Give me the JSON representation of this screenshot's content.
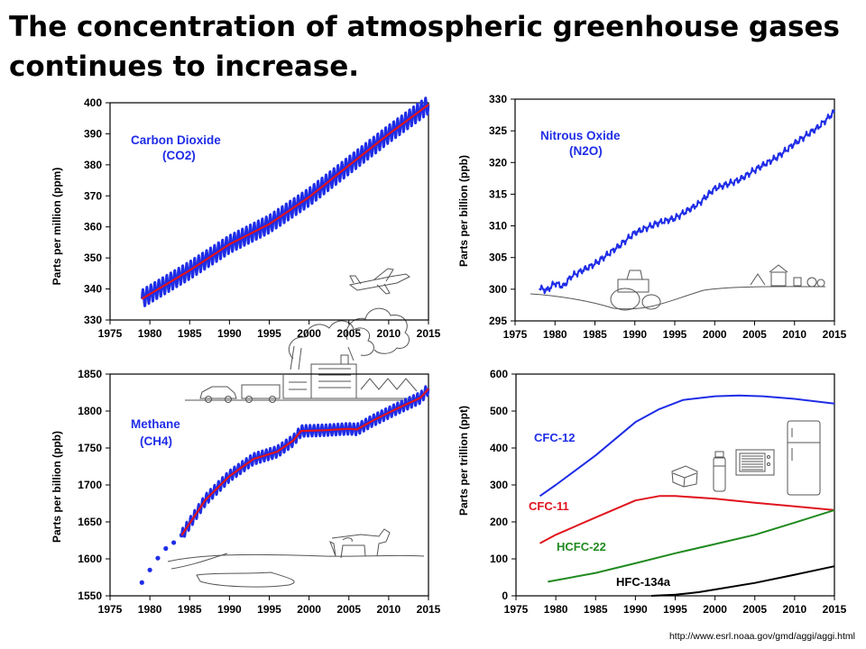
{
  "slide": {
    "title": "The concentration of atmospheric greenhouse gases continues to increase.",
    "source_url": "http://www.esrl.noaa.gov/gmd/aggi/aggi.html"
  },
  "colors": {
    "measured": "#1f2de6",
    "trend": "#e0141e",
    "green": "#1f8a1f",
    "black": "#000000"
  },
  "chart_data": [
    {
      "type": "line",
      "panel": "co2",
      "series_label_lines": [
        "Carbon Dioxide",
        "(CO2)"
      ],
      "ylabel": "Parts per million (ppm)",
      "xlim": [
        1975,
        2015
      ],
      "ylim": [
        330,
        400
      ],
      "x_ticks": [
        1975,
        1980,
        1985,
        1990,
        1995,
        2000,
        2005,
        2010,
        2015
      ],
      "y_ticks": [
        330,
        340,
        350,
        360,
        370,
        380,
        390,
        400
      ],
      "measured_seasonal_amplitude": 3,
      "series": [
        {
          "role": "measured",
          "x": [
            1979,
            1985,
            1990,
            1995,
            2000,
            2005,
            2010,
            2015
          ],
          "values": [
            336.8,
            346.0,
            354.4,
            360.9,
            369.6,
            379.8,
            389.9,
            399.4
          ]
        },
        {
          "role": "trend",
          "x": [
            1979,
            1985,
            1990,
            1995,
            2000,
            2005,
            2010,
            2015
          ],
          "values": [
            336.8,
            346.0,
            354.4,
            360.9,
            369.6,
            379.8,
            389.9,
            399.4
          ]
        }
      ],
      "illustration": [
        "airplane-icon",
        "cars-icon",
        "factory-icon",
        "smoke-icon"
      ]
    },
    {
      "type": "line",
      "panel": "n2o",
      "series_label_lines": [
        "Nitrous Oxide",
        "(N2O)"
      ],
      "ylabel": "Parts per billion (ppb)",
      "xlim": [
        1975,
        2015
      ],
      "ylim": [
        295,
        330
      ],
      "x_ticks": [
        1975,
        1980,
        1985,
        1990,
        1995,
        2000,
        2005,
        2010,
        2015
      ],
      "y_ticks": [
        295,
        300,
        305,
        310,
        315,
        320,
        325,
        330
      ],
      "series": [
        {
          "role": "measured",
          "x": [
            1978,
            1979,
            1980,
            1981,
            1982,
            1985,
            1988,
            1990,
            1993,
            1995,
            1998,
            2000,
            2003,
            2005,
            2008,
            2010,
            2013,
            2015
          ],
          "values": [
            300.2,
            299.8,
            301.0,
            300.4,
            302.0,
            304.0,
            306.8,
            308.9,
            310.5,
            311.2,
            313.5,
            315.9,
            317.2,
            318.8,
            321.0,
            323.0,
            325.6,
            328.0
          ]
        }
      ],
      "illustration": [
        "tractor-icon",
        "farm-icon"
      ]
    },
    {
      "type": "line",
      "panel": "ch4",
      "series_label_lines": [
        "Methane",
        "(CH4)"
      ],
      "ylabel": "Parts per billion (ppb)",
      "xlim": [
        1975,
        2015
      ],
      "ylim": [
        1550,
        1850
      ],
      "x_ticks": [
        1975,
        1980,
        1985,
        1990,
        1995,
        2000,
        2005,
        2010,
        2015
      ],
      "y_ticks": [
        1550,
        1600,
        1650,
        1700,
        1750,
        1800,
        1850
      ],
      "measured_seasonal_amplitude": 8,
      "series": [
        {
          "role": "early-points",
          "x": [
            1979,
            1980,
            1981,
            1982,
            1983,
            1984
          ],
          "values": [
            1568,
            1585,
            1601,
            1614,
            1622,
            1632
          ]
        },
        {
          "role": "measured",
          "x": [
            1984,
            1987,
            1990,
            1993,
            1996,
            1998,
            1999,
            2002,
            2005,
            2006,
            2008,
            2011,
            2014,
            2015
          ],
          "values": [
            1632,
            1680,
            1712,
            1735,
            1745,
            1760,
            1773,
            1774,
            1776,
            1775,
            1787,
            1803,
            1818,
            1830
          ]
        },
        {
          "role": "trend",
          "x": [
            1984,
            1987,
            1990,
            1993,
            1996,
            1998,
            1999,
            2002,
            2005,
            2006,
            2008,
            2011,
            2014,
            2015
          ],
          "values": [
            1632,
            1680,
            1712,
            1735,
            1745,
            1760,
            1773,
            1774,
            1776,
            1775,
            1787,
            1803,
            1818,
            1830
          ]
        }
      ],
      "illustration": [
        "cow-icon",
        "wetland-icon"
      ]
    },
    {
      "type": "line",
      "panel": "halocarbons",
      "ylabel": "Parts per trillion (ppt)",
      "xlim": [
        1975,
        2015
      ],
      "ylim": [
        0,
        600
      ],
      "x_ticks": [
        1975,
        1980,
        1985,
        1990,
        1995,
        2000,
        2005,
        2010,
        2015
      ],
      "y_ticks": [
        0,
        100,
        200,
        300,
        400,
        500,
        600
      ],
      "series": [
        {
          "name": "CFC-12",
          "color_key": "measured",
          "x": [
            1978,
            1980,
            1985,
            1990,
            1993,
            1996,
            2000,
            2003,
            2006,
            2010,
            2015
          ],
          "values": [
            270,
            300,
            380,
            470,
            505,
            530,
            540,
            542,
            540,
            533,
            520
          ]
        },
        {
          "name": "CFC-11",
          "color_key": "trend",
          "x": [
            1978,
            1980,
            1985,
            1990,
            1993,
            1995,
            2000,
            2005,
            2010,
            2015
          ],
          "values": [
            142,
            165,
            212,
            258,
            270,
            270,
            263,
            252,
            242,
            232
          ]
        },
        {
          "name": "HCFC-22",
          "color_key": "green",
          "x": [
            1979,
            1985,
            1990,
            1995,
            2000,
            2005,
            2010,
            2015
          ],
          "values": [
            38,
            62,
            88,
            115,
            140,
            165,
            198,
            232
          ]
        },
        {
          "name": "HFC-134a",
          "color_key": "black",
          "x": [
            1992,
            1995,
            1998,
            2000,
            2005,
            2010,
            2015
          ],
          "values": [
            0,
            3,
            10,
            17,
            35,
            57,
            80
          ]
        }
      ],
      "illustration": [
        "spray-can-icon",
        "thermos-icon",
        "microwave-icon",
        "refrigerator-icon",
        "takeout-box-icon"
      ]
    }
  ]
}
